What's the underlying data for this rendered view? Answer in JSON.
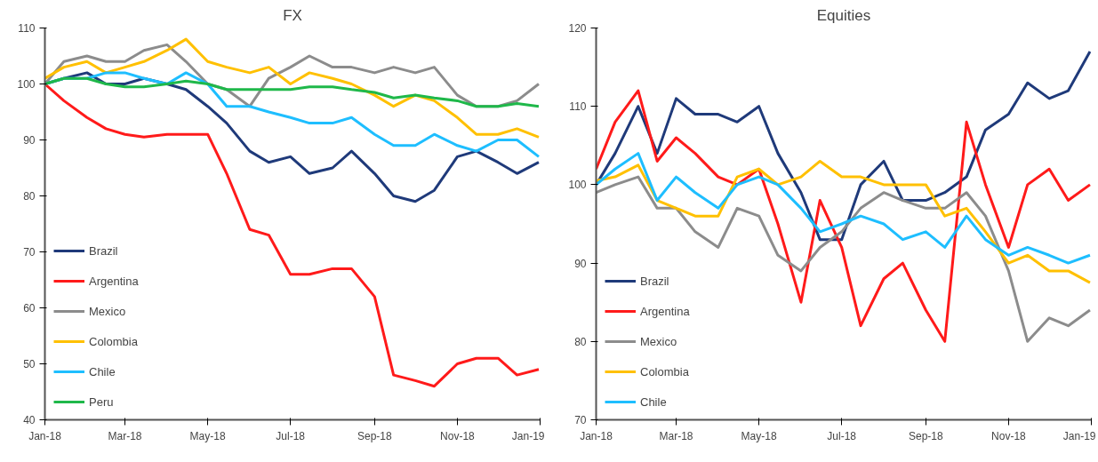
{
  "chart_data": [
    {
      "type": "line",
      "title": "FX",
      "legend": "bottom left",
      "grid": false,
      "line_style": "solid",
      "marker": "none",
      "x": [
        "2018-01-01",
        "2018-01-15",
        "2018-02-01",
        "2018-02-15",
        "2018-03-01",
        "2018-03-15",
        "2018-04-01",
        "2018-04-15",
        "2018-05-01",
        "2018-05-15",
        "2018-06-01",
        "2018-06-15",
        "2018-07-01",
        "2018-07-15",
        "2018-08-01",
        "2018-08-15",
        "2018-09-01",
        "2018-09-15",
        "2018-10-01",
        "2018-10-15",
        "2018-11-01",
        "2018-11-15",
        "2018-12-01",
        "2018-12-15",
        "2018-12-31"
      ],
      "xlim": [
        "2018-01-01",
        "2019-01-01"
      ],
      "xticks": [
        {
          "value": "2018-01-01",
          "label": "Jan-18"
        },
        {
          "value": "2018-03-01",
          "label": "Mar-18"
        },
        {
          "value": "2018-05-01",
          "label": "May-18"
        },
        {
          "value": "2018-07-01",
          "label": "Jul-18"
        },
        {
          "value": "2018-09-01",
          "label": "Sep-18"
        },
        {
          "value": "2018-11-01",
          "label": "Nov-18"
        },
        {
          "value": "2019-01-01",
          "label": "Jan-19"
        }
      ],
      "ylim": [
        40,
        110
      ],
      "yticks": [
        40,
        50,
        60,
        70,
        80,
        90,
        100,
        110
      ],
      "series": [
        {
          "name": "Brazil",
          "color": "#1f3a7a",
          "values": [
            100,
            101,
            102,
            100,
            100,
            101,
            100,
            99,
            96,
            93,
            88,
            86,
            87,
            84,
            85,
            88,
            84,
            80,
            79,
            81,
            87,
            88,
            86,
            84,
            86
          ]
        },
        {
          "name": "Argentina",
          "color": "#ff1a1a",
          "values": [
            100,
            97,
            94,
            92,
            91,
            90.5,
            91,
            91,
            91,
            84,
            74,
            73,
            66,
            66,
            67,
            67,
            62,
            48,
            47,
            46,
            50,
            51,
            51,
            48,
            49
          ]
        },
        {
          "name": "Mexico",
          "color": "#8c8c8c",
          "values": [
            100,
            104,
            105,
            104,
            104,
            106,
            107,
            104,
            100,
            99,
            96,
            101,
            103,
            105,
            103,
            103,
            102,
            103,
            102,
            103,
            98,
            96,
            96,
            97,
            100
          ]
        },
        {
          "name": "Colombia",
          "color": "#ffc000",
          "values": [
            101,
            103,
            104,
            102,
            103,
            104,
            106,
            108,
            104,
            103,
            102,
            103,
            100,
            102,
            101,
            100,
            98,
            96,
            98,
            97,
            94,
            91,
            91,
            92,
            90.5
          ]
        },
        {
          "name": "Chile",
          "color": "#1ebeff",
          "values": [
            100,
            101,
            101,
            102,
            102,
            101,
            100,
            102,
            100,
            96,
            96,
            95,
            94,
            93,
            93,
            94,
            91,
            89,
            89,
            91,
            89,
            88,
            90,
            90,
            87
          ]
        },
        {
          "name": "Peru",
          "color": "#1fb84a",
          "values": [
            100,
            101,
            101,
            100,
            99.5,
            99.5,
            100,
            100.5,
            100,
            99,
            99,
            99,
            99,
            99.5,
            99.5,
            99,
            98.5,
            97.5,
            98,
            97.5,
            97,
            96,
            96,
            96.5,
            96
          ]
        }
      ]
    },
    {
      "type": "line",
      "title": "Equities",
      "legend": "bottom left",
      "grid": false,
      "line_style": "solid",
      "marker": "none",
      "x": [
        "2018-01-01",
        "2018-01-15",
        "2018-02-01",
        "2018-02-15",
        "2018-03-01",
        "2018-03-15",
        "2018-04-01",
        "2018-04-15",
        "2018-05-01",
        "2018-05-15",
        "2018-06-01",
        "2018-06-15",
        "2018-07-01",
        "2018-07-15",
        "2018-08-01",
        "2018-08-15",
        "2018-09-01",
        "2018-09-15",
        "2018-10-01",
        "2018-10-15",
        "2018-11-01",
        "2018-11-15",
        "2018-12-01",
        "2018-12-15",
        "2018-12-31"
      ],
      "xlim": [
        "2018-01-01",
        "2019-01-01"
      ],
      "xticks": [
        {
          "value": "2018-01-01",
          "label": "Jan-18"
        },
        {
          "value": "2018-03-01",
          "label": "Mar-18"
        },
        {
          "value": "2018-05-01",
          "label": "May-18"
        },
        {
          "value": "2018-07-01",
          "label": "Jul-18"
        },
        {
          "value": "2018-09-01",
          "label": "Sep-18"
        },
        {
          "value": "2018-11-01",
          "label": "Nov-18"
        },
        {
          "value": "2019-01-01",
          "label": "Jan-19"
        }
      ],
      "ylim": [
        70,
        120
      ],
      "yticks": [
        70,
        80,
        90,
        100,
        110,
        120
      ],
      "series": [
        {
          "name": "Brazil",
          "color": "#1f3a7a",
          "values": [
            100,
            104,
            110,
            104,
            111,
            109,
            109,
            108,
            110,
            104,
            99,
            93,
            93,
            100,
            103,
            98,
            98,
            99,
            101,
            107,
            109,
            113,
            111,
            112,
            117
          ]
        },
        {
          "name": "Argentina",
          "color": "#ff1a1a",
          "values": [
            102,
            108,
            112,
            103,
            106,
            104,
            101,
            100,
            102,
            95,
            85,
            98,
            92,
            82,
            88,
            90,
            84,
            80,
            108,
            100,
            92,
            100,
            102,
            98,
            100
          ]
        },
        {
          "name": "Mexico",
          "color": "#8c8c8c",
          "values": [
            99,
            100,
            101,
            97,
            97,
            94,
            92,
            97,
            96,
            91,
            89,
            92,
            94,
            97,
            99,
            98,
            97,
            97,
            99,
            96,
            89,
            80,
            83,
            82,
            84
          ]
        },
        {
          "name": "Colombia",
          "color": "#ffc000",
          "values": [
            100.5,
            101,
            102.5,
            98,
            97,
            96,
            96,
            101,
            102,
            100,
            101,
            103,
            101,
            101,
            100,
            100,
            100,
            96,
            97,
            94,
            90,
            91,
            89,
            89,
            87.5
          ]
        },
        {
          "name": "Chile",
          "color": "#1ebeff",
          "values": [
            100,
            102,
            104,
            98,
            101,
            99,
            97,
            100,
            101,
            100,
            97,
            94,
            95,
            96,
            95,
            93,
            94,
            92,
            96,
            93,
            91,
            92,
            91,
            90,
            91
          ]
        }
      ]
    }
  ]
}
